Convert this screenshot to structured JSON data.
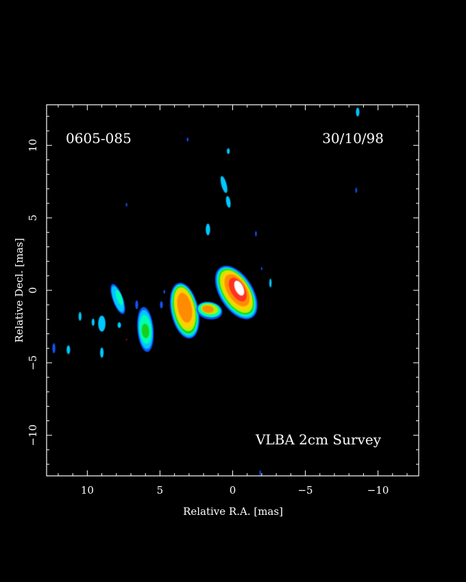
{
  "chart_data": {
    "type": "heatmap",
    "source_name": "0605-085",
    "epoch": "30/10/98",
    "survey_label": "VLBA 2cm Survey",
    "xlabel": "Relative R.A. [mas]",
    "ylabel": "Relative Decl. [mas]",
    "xlim": [
      12.8,
      -12.8
    ],
    "ylim": [
      -12.8,
      12.8
    ],
    "x_ticks": [
      10,
      5,
      0,
      -5,
      -10
    ],
    "x_tick_labels": [
      "10",
      "5",
      "0",
      "−5",
      "−10"
    ],
    "y_ticks": [
      10,
      5,
      0,
      -5,
      -10
    ],
    "y_tick_labels": [
      "10",
      "5",
      "0",
      "−5",
      "−10"
    ],
    "grid": false,
    "colors": {
      "background": "#000000",
      "frame": "#ffffff",
      "level_1": "#0a55ff",
      "level_2": "#00c8ff",
      "level_3": "#00ffb4",
      "level_4": "#18d01c",
      "level_5": "#b6f000",
      "level_6": "#ffd000",
      "level_7": "#ff8c00",
      "level_8": "#ff3020",
      "level_9": "#ffffff"
    },
    "components": [
      {
        "name": "core",
        "ra": -0.2,
        "dec": -0.1,
        "peak_level": 9
      },
      {
        "name": "inner-jet-knot",
        "ra": 3.3,
        "dec": -1.3,
        "peak_level": 7
      },
      {
        "name": "jet-knot-6mas",
        "ra": 6.0,
        "dec": -2.7,
        "peak_level": 4
      },
      {
        "name": "jet-knot-8mas",
        "ra": 8.2,
        "dec": -1.0,
        "peak_level": 3
      },
      {
        "name": "outer-jet-9mas",
        "ra": 9.0,
        "dec": -2.3,
        "peak_level": 2
      },
      {
        "name": "faint-north-1",
        "ra": 0.6,
        "dec": 7.0,
        "peak_level": 2
      },
      {
        "name": "faint-north-2",
        "ra": 1.7,
        "dec": 4.2,
        "peak_level": 2
      },
      {
        "name": "faint-west",
        "ra": -2.6,
        "dec": 0.5,
        "peak_level": 2
      }
    ]
  }
}
